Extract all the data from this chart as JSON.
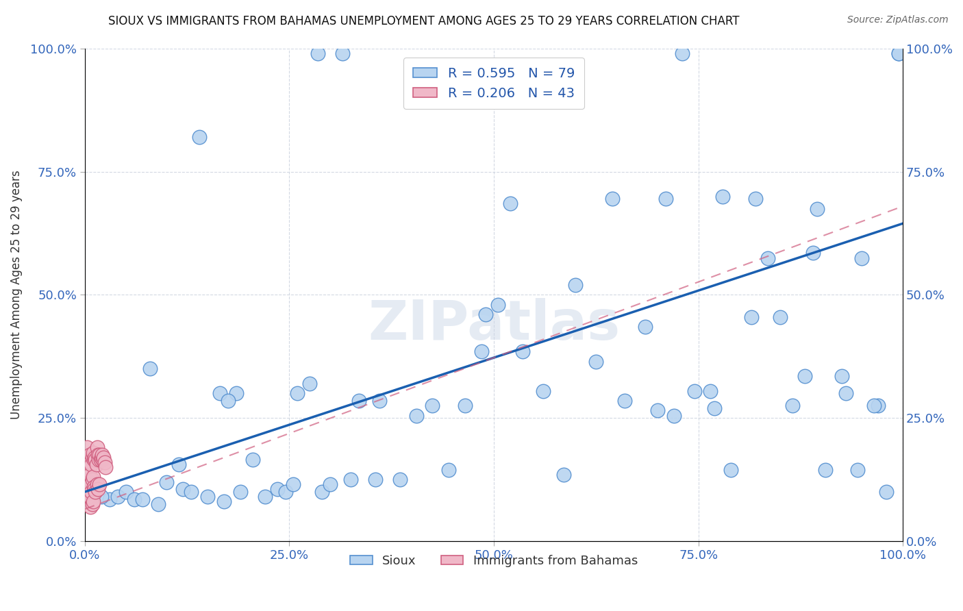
{
  "title": "SIOUX VS IMMIGRANTS FROM BAHAMAS UNEMPLOYMENT AMONG AGES 25 TO 29 YEARS CORRELATION CHART",
  "source": "Source: ZipAtlas.com",
  "xlabel_ticks": [
    "0.0%",
    "25.0%",
    "50.0%",
    "75.0%",
    "100.0%"
  ],
  "xlabel_tick_vals": [
    0,
    0.25,
    0.5,
    0.75,
    1.0
  ],
  "ylabel": "Unemployment Among Ages 25 to 29 years",
  "ylabel_ticks": [
    "0.0%",
    "25.0%",
    "50.0%",
    "75.0%",
    "100.0%"
  ],
  "ylabel_tick_vals": [
    0,
    0.25,
    0.5,
    0.75,
    1.0
  ],
  "right_axis_ticks": [
    "100.0%",
    "75.0%",
    "50.0%",
    "25.0%",
    "0.0%"
  ],
  "legend_sioux_label": "R = 0.595   N = 79",
  "legend_bahamas_label": "R = 0.206   N = 43",
  "legend_bottom_sioux": "Sioux",
  "legend_bottom_bahamas": "Immigrants from Bahamas",
  "sioux_color": "#b8d4f0",
  "sioux_edge_color": "#5590d0",
  "sioux_line_color": "#1a5fb0",
  "bahamas_color": "#f0b8c8",
  "bahamas_edge_color": "#d06080",
  "bahamas_line_color": "#c04070",
  "watermark_text": "ZIPatlas",
  "sioux_x": [
    0.285,
    0.315,
    0.73,
    0.14,
    0.08,
    0.165,
    0.185,
    0.175,
    0.26,
    0.275,
    0.49,
    0.52,
    0.6,
    0.645,
    0.71,
    0.72,
    0.77,
    0.78,
    0.82,
    0.85,
    0.89,
    0.895,
    0.93,
    0.95,
    0.97,
    0.98,
    0.995,
    0.03,
    0.04,
    0.05,
    0.06,
    0.07,
    0.09,
    0.1,
    0.12,
    0.13,
    0.15,
    0.17,
    0.19,
    0.205,
    0.22,
    0.235,
    0.245,
    0.255,
    0.29,
    0.3,
    0.325,
    0.355,
    0.385,
    0.405,
    0.425,
    0.445,
    0.465,
    0.485,
    0.505,
    0.535,
    0.56,
    0.585,
    0.625,
    0.66,
    0.685,
    0.7,
    0.745,
    0.765,
    0.79,
    0.815,
    0.835,
    0.865,
    0.88,
    0.905,
    0.925,
    0.945,
    0.965,
    0.995,
    0.01,
    0.02,
    0.115,
    0.335,
    0.36
  ],
  "sioux_y": [
    0.99,
    0.99,
    0.99,
    0.82,
    0.35,
    0.3,
    0.3,
    0.285,
    0.3,
    0.32,
    0.46,
    0.685,
    0.52,
    0.695,
    0.695,
    0.255,
    0.27,
    0.7,
    0.695,
    0.455,
    0.585,
    0.675,
    0.3,
    0.575,
    0.275,
    0.1,
    0.99,
    0.085,
    0.09,
    0.1,
    0.085,
    0.085,
    0.075,
    0.12,
    0.105,
    0.1,
    0.09,
    0.08,
    0.1,
    0.165,
    0.09,
    0.105,
    0.1,
    0.115,
    0.1,
    0.115,
    0.125,
    0.125,
    0.125,
    0.255,
    0.275,
    0.145,
    0.275,
    0.385,
    0.48,
    0.385,
    0.305,
    0.135,
    0.365,
    0.285,
    0.435,
    0.265,
    0.305,
    0.305,
    0.145,
    0.455,
    0.575,
    0.275,
    0.335,
    0.145,
    0.335,
    0.145,
    0.275,
    0.99,
    0.09,
    0.09,
    0.155,
    0.285,
    0.285
  ],
  "bahamas_x": [
    0.003,
    0.004,
    0.004,
    0.005,
    0.005,
    0.005,
    0.005,
    0.005,
    0.006,
    0.006,
    0.006,
    0.007,
    0.007,
    0.007,
    0.008,
    0.008,
    0.009,
    0.009,
    0.009,
    0.01,
    0.01,
    0.01,
    0.011,
    0.011,
    0.012,
    0.012,
    0.013,
    0.013,
    0.014,
    0.015,
    0.015,
    0.016,
    0.016,
    0.017,
    0.018,
    0.018,
    0.019,
    0.02,
    0.021,
    0.022,
    0.023,
    0.024,
    0.025
  ],
  "bahamas_y": [
    0.19,
    0.17,
    0.15,
    0.165,
    0.14,
    0.12,
    0.1,
    0.085,
    0.175,
    0.135,
    0.09,
    0.16,
    0.115,
    0.07,
    0.155,
    0.1,
    0.17,
    0.125,
    0.075,
    0.18,
    0.13,
    0.08,
    0.165,
    0.11,
    0.17,
    0.105,
    0.165,
    0.1,
    0.155,
    0.19,
    0.115,
    0.175,
    0.105,
    0.165,
    0.175,
    0.115,
    0.165,
    0.17,
    0.175,
    0.165,
    0.17,
    0.16,
    0.15
  ],
  "sioux_line_x0": 0.0,
  "sioux_line_y0": 0.1,
  "sioux_line_x1": 1.0,
  "sioux_line_y1": 0.645,
  "bahamas_line_x0": 0.0,
  "bahamas_line_y0": 0.065,
  "bahamas_line_x1": 1.0,
  "bahamas_line_y1": 0.68
}
